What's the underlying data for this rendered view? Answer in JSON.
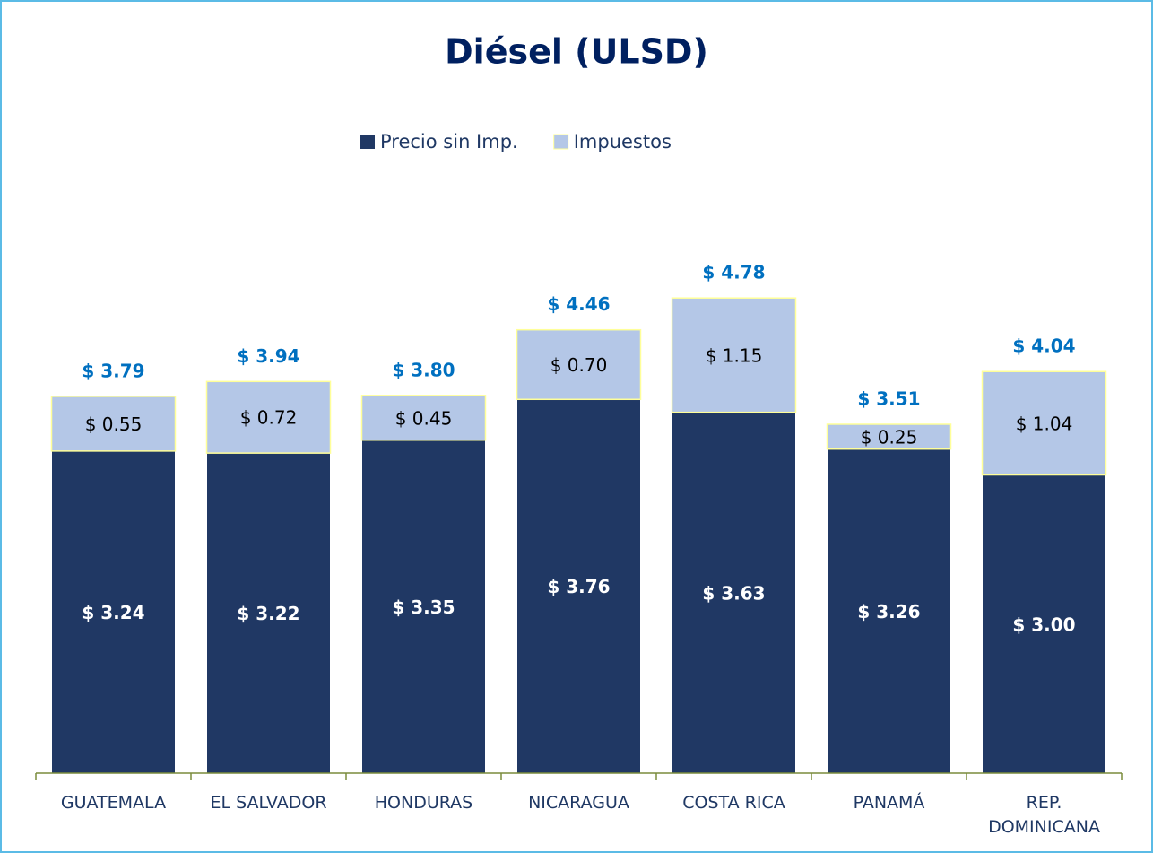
{
  "chart_data": {
    "type": "stacked_bar",
    "title": "Diésel (ULSD)",
    "categories": [
      "GUATEMALA",
      "EL SALVADOR",
      "HONDURAS",
      "NICARAGUA",
      "COSTA RICA",
      "PANAMÁ",
      "REP. DOMINICANA"
    ],
    "series": [
      {
        "name": "Precio sin Imp.",
        "color": "#203864",
        "values": [
          3.24,
          3.22,
          3.35,
          3.76,
          3.63,
          3.26,
          3.0
        ],
        "value_labels": [
          "$ 3.24",
          "$ 3.22",
          "$ 3.35",
          "$ 3.76",
          "$ 3.63",
          "$ 3.26",
          "$ 3.00"
        ]
      },
      {
        "name": "Impuestos",
        "color": "#b4c7e7",
        "values": [
          0.55,
          0.72,
          0.45,
          0.7,
          1.15,
          0.25,
          1.04
        ],
        "value_labels": [
          "$ 0.55",
          "$ 0.72",
          "$ 0.45",
          "$ 0.70",
          "$ 1.15",
          "$ 0.25",
          "$ 1.04"
        ]
      }
    ],
    "totals": [
      3.79,
      3.94,
      3.8,
      4.46,
      4.78,
      3.51,
      4.04
    ],
    "total_labels": [
      "$ 3.79",
      "$ 3.94",
      "$ 3.80",
      "$ 4.46",
      "$ 4.78",
      "$ 3.51",
      "$ 4.04"
    ],
    "ylim": [
      0,
      6
    ],
    "legend": "top"
  }
}
